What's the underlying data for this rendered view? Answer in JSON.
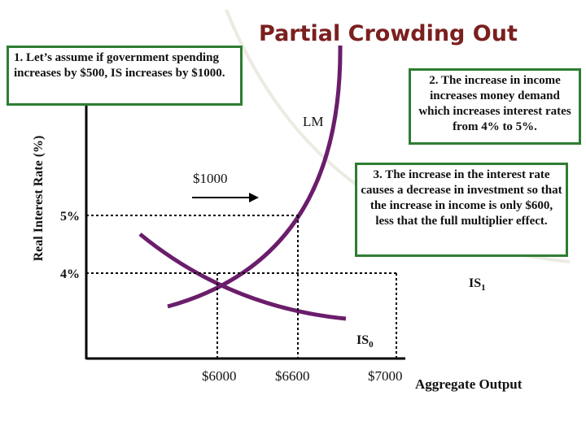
{
  "title": "Partial Crowding Out",
  "callouts": {
    "c1": "1. Let’s assume if government spending increases by $500, IS increases by $1000.",
    "c2": "2. The increase in income increases money demand which increases interest rates from 4% to 5%.",
    "c3": "3. The increase in the interest rate causes a decrease in investment so that the increase in income is only $600, less that the full multiplier effect."
  },
  "axes": {
    "y_label": "Real Interest Rate (%)",
    "x_label": "Aggregate Output",
    "y_ticks": [
      "5%",
      "4%"
    ],
    "x_ticks": [
      "$6000",
      "$6600",
      "$7000"
    ]
  },
  "curves": {
    "lm": "LM",
    "is0": "IS",
    "is0_sub": "0",
    "is1": "IS",
    "is1_sub": "1",
    "shift": "$1000"
  },
  "colors": {
    "curve_purple": "#6b1d6b",
    "is1_line": "#ecebe2",
    "callout_border": "#2e7d32",
    "title": "#7b1f1f"
  }
}
